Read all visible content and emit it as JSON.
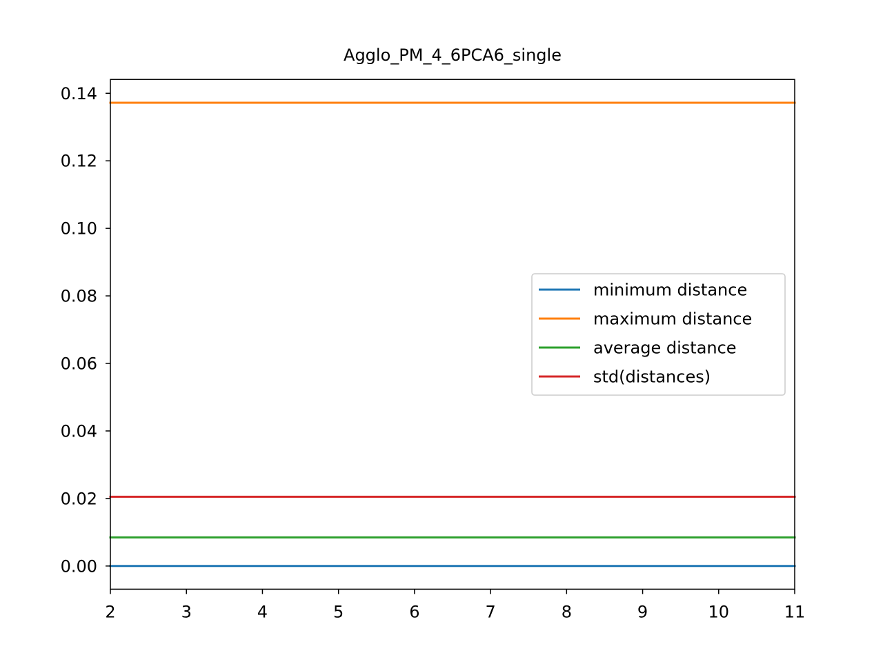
{
  "chart_data": {
    "type": "line",
    "title": "Agglo_PM_4_6PCA6_single",
    "xlabel": "",
    "ylabel": "",
    "x": [
      2,
      3,
      4,
      5,
      6,
      7,
      8,
      9,
      10,
      11
    ],
    "xlim": [
      2,
      11
    ],
    "ylim": [
      -0.00686,
      0.1441
    ],
    "x_ticks": [
      2,
      3,
      4,
      5,
      6,
      7,
      8,
      9,
      10,
      11
    ],
    "y_ticks": [
      0.0,
      0.02,
      0.04,
      0.06,
      0.08,
      0.1,
      0.12,
      0.14
    ],
    "y_tick_labels": [
      "0.00",
      "0.02",
      "0.04",
      "0.06",
      "0.08",
      "0.10",
      "0.12",
      "0.14"
    ],
    "grid": false,
    "legend_position": "center-right",
    "series": [
      {
        "name": "minimum distance",
        "color": "#1f77b4",
        "values": [
          0.0,
          0.0,
          0.0,
          0.0,
          0.0,
          0.0,
          0.0,
          0.0,
          0.0,
          0.0
        ]
      },
      {
        "name": "maximum distance",
        "color": "#ff7f0e",
        "values": [
          0.1372,
          0.1372,
          0.1372,
          0.1372,
          0.1372,
          0.1372,
          0.1372,
          0.1372,
          0.1372,
          0.1372
        ]
      },
      {
        "name": "average distance",
        "color": "#2ca02c",
        "values": [
          0.0085,
          0.0085,
          0.0085,
          0.0085,
          0.0085,
          0.0085,
          0.0085,
          0.0085,
          0.0085,
          0.0085
        ]
      },
      {
        "name": "std(distances)",
        "color": "#d62728",
        "values": [
          0.0205,
          0.0205,
          0.0205,
          0.0205,
          0.0205,
          0.0205,
          0.0205,
          0.0205,
          0.0205,
          0.0205
        ]
      }
    ]
  }
}
